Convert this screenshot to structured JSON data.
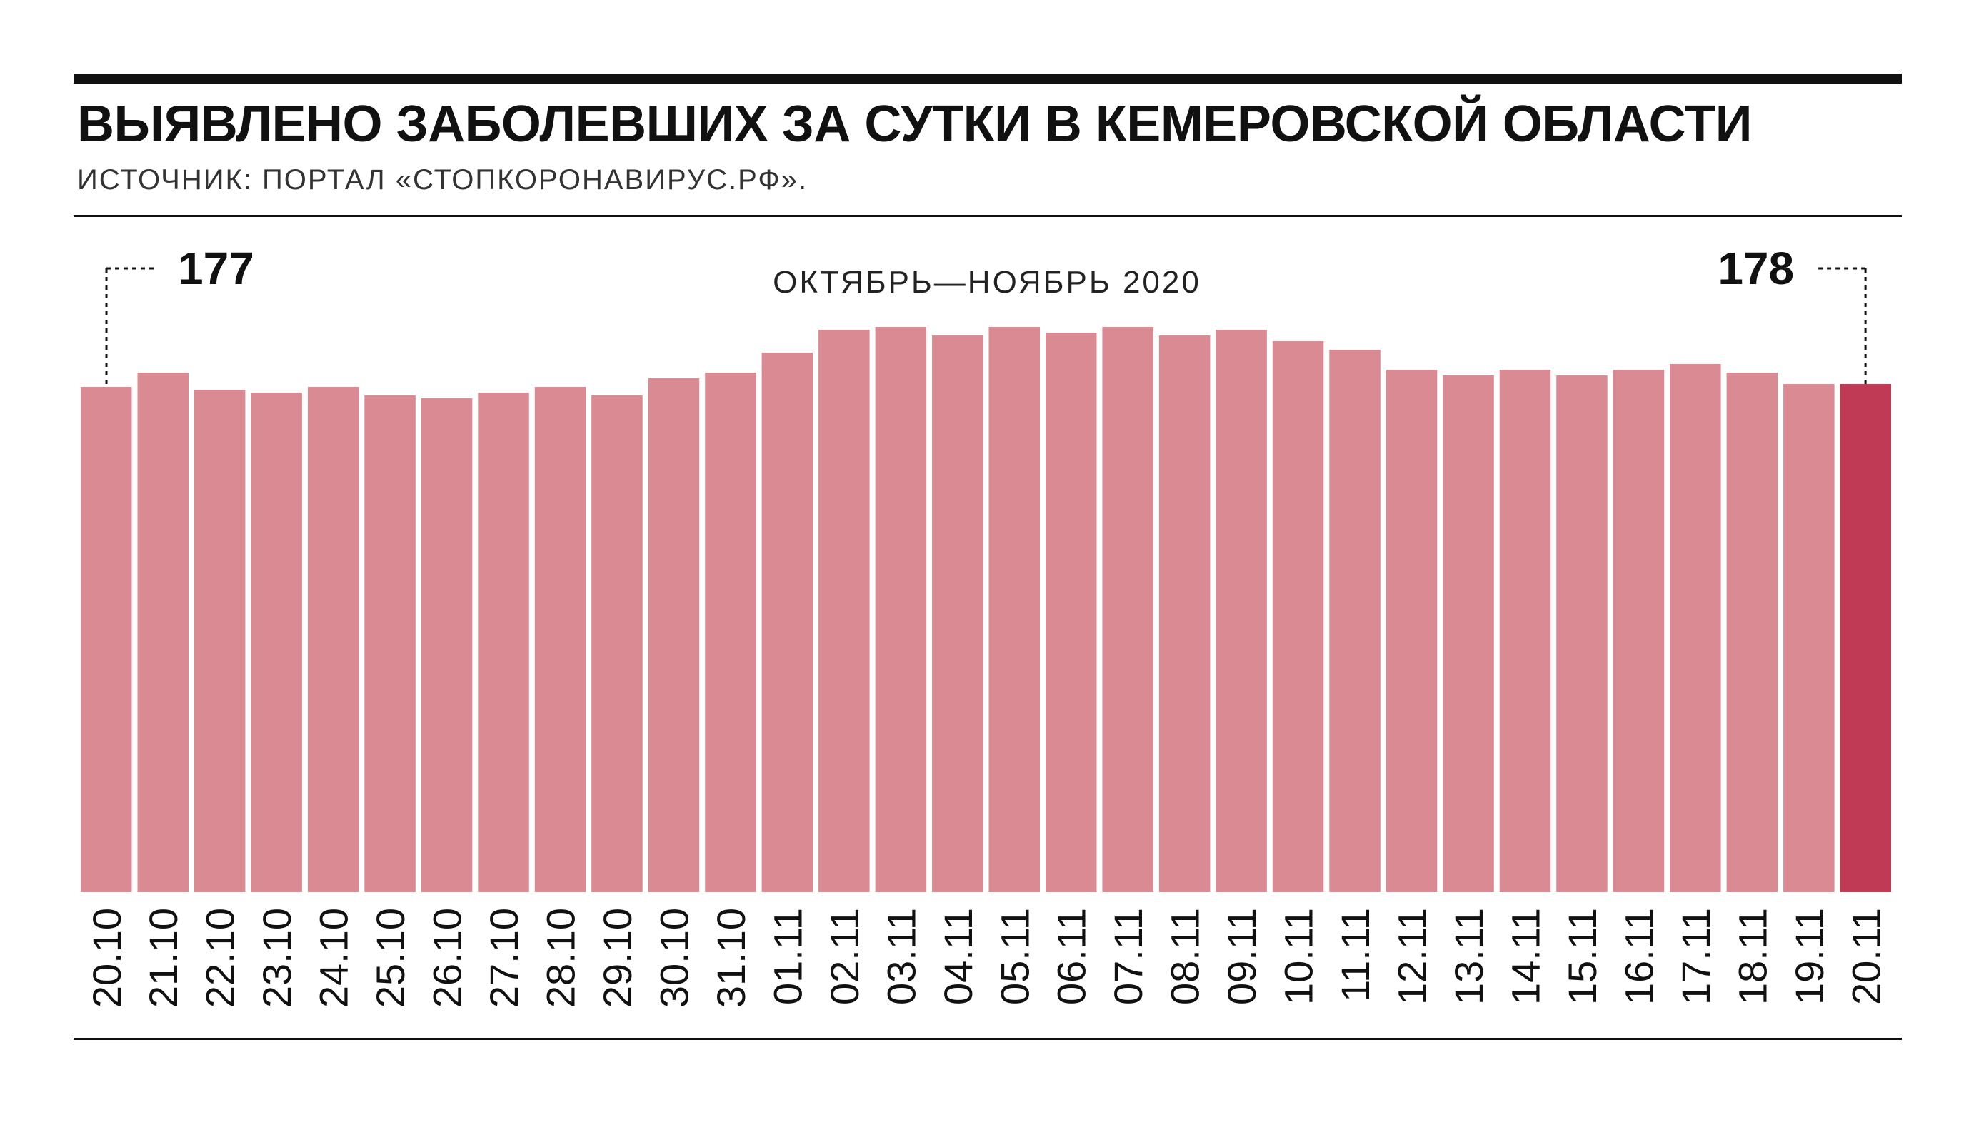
{
  "header": {
    "title_regular": "ВЫЯВЛЕНО ЗАБОЛЕВШИХ ЗА СУТКИ В ",
    "title_bold": "КЕМЕРОВСКОЙ ОБЛАСТИ",
    "source": "ИСТОЧНИК: ПОРТАЛ «СТОПКОРОНАВИРУС.РФ»."
  },
  "colors": {
    "bar": "#d98a93",
    "bar_highlight": "#c03a55",
    "text": "#111111"
  },
  "chart_data": {
    "type": "bar",
    "period_label": "ОКТЯБРЬ—НОЯБРЬ 2020",
    "categories": [
      "20.10",
      "21.10",
      "22.10",
      "23.10",
      "24.10",
      "25.10",
      "26.10",
      "27.10",
      "28.10",
      "29.10",
      "30.10",
      "31.10",
      "01.11",
      "02.11",
      "03.11",
      "04.11",
      "05.11",
      "06.11",
      "07.11",
      "08.11",
      "09.11",
      "10.11",
      "11.11",
      "12.11",
      "13.11",
      "14.11",
      "15.11",
      "16.11",
      "17.11",
      "18.11",
      "19.11",
      "20.11"
    ],
    "values": [
      177,
      182,
      176,
      175,
      177,
      174,
      173,
      175,
      177,
      174,
      180,
      182,
      189,
      197,
      198,
      195,
      198,
      196,
      198,
      195,
      197,
      193,
      190,
      183,
      181,
      183,
      181,
      183,
      185,
      182,
      178,
      178
    ],
    "annotations": [
      {
        "category": "20.10",
        "label": "177"
      },
      {
        "category": "20.11",
        "label": "178"
      }
    ],
    "highlight": "20.11",
    "ylim": [
      0,
      200
    ],
    "grid": false,
    "legend": "none"
  }
}
